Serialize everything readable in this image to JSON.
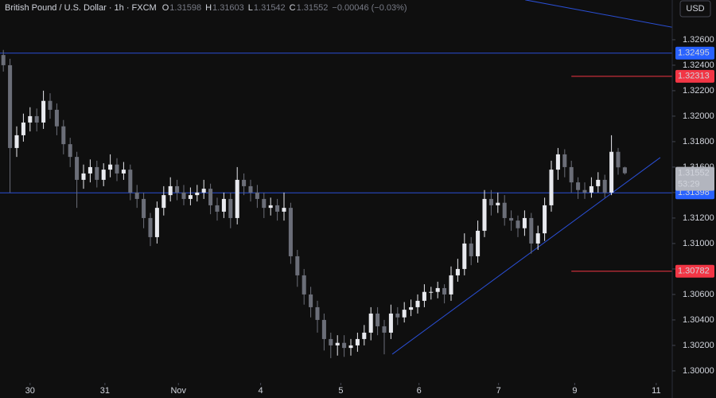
{
  "chart_data": {
    "type": "candlestick",
    "symbol_title": "British Pound / U.S. Dollar · 1h · FXCM",
    "ohlc_letters": [
      "O",
      "H",
      "L",
      "C"
    ],
    "change_label": "−0.00046 (−0.03%)",
    "currency_button": "USD",
    "countdown": "53:29",
    "up_color": "#e8e9ee",
    "down_color": "#6b6e78",
    "xlim": [
      -0.5,
      99.5
    ],
    "ylim": [
      1.29912,
      1.32912
    ],
    "xticks": [
      {
        "value": 4.0,
        "label": "30"
      },
      {
        "value": 15.2,
        "label": "31"
      },
      {
        "value": 26.2,
        "label": "Nov"
      },
      {
        "value": 38.5,
        "label": "4"
      },
      {
        "value": 50.5,
        "label": "5"
      },
      {
        "value": 62.2,
        "label": "6"
      },
      {
        "value": 74.1,
        "label": "7"
      },
      {
        "value": 85.5,
        "label": "9"
      },
      {
        "value": 97.7,
        "label": "11"
      }
    ],
    "yticks": [
      {
        "value": 1.3,
        "label": "1.30000"
      },
      {
        "value": 1.302,
        "label": "1.30200"
      },
      {
        "value": 1.304,
        "label": "1.30400"
      },
      {
        "value": 1.306,
        "label": "1.30600"
      },
      {
        "value": 1.308,
        "label": "1.30800"
      },
      {
        "value": 1.31,
        "label": "1.31000"
      },
      {
        "value": 1.312,
        "label": "1.31200"
      },
      {
        "value": 1.314,
        "label": "1.31400"
      },
      {
        "value": 1.316,
        "label": "1.31600"
      },
      {
        "value": 1.318,
        "label": "1.31800"
      },
      {
        "value": 1.32,
        "label": "1.32000"
      },
      {
        "value": 1.322,
        "label": "1.32200"
      },
      {
        "value": 1.324,
        "label": "1.32400"
      },
      {
        "value": 1.326,
        "label": "1.32600"
      }
    ],
    "series": [
      {
        "x": [
          0,
          1,
          2,
          3,
          4,
          5,
          6,
          7,
          8,
          9,
          10,
          11,
          12,
          13,
          14,
          15,
          16,
          17,
          18,
          19,
          20,
          21,
          22,
          23,
          24,
          25,
          26,
          27,
          28,
          29,
          30,
          31,
          32,
          33,
          34,
          35,
          36,
          37,
          38,
          39,
          40,
          41,
          42,
          43,
          44,
          45,
          46,
          47,
          48,
          49,
          50,
          51,
          52,
          53,
          54,
          55,
          56,
          57,
          58,
          59,
          60,
          61,
          62,
          63,
          64,
          65,
          66,
          67,
          68,
          69,
          70,
          71,
          72,
          73,
          74,
          75,
          76,
          77,
          78,
          79,
          80,
          81,
          82,
          83,
          84,
          85,
          86,
          87,
          88,
          89,
          90,
          91,
          92,
          93
        ],
        "open": [
          1.3248,
          1.324,
          1.3175,
          1.3185,
          1.3195,
          1.32,
          1.3195,
          1.3212,
          1.3205,
          1.3192,
          1.3178,
          1.3168,
          1.315,
          1.3155,
          1.316,
          1.315,
          1.3158,
          1.3162,
          1.3155,
          1.3158,
          1.314,
          1.3135,
          1.312,
          1.3105,
          1.3128,
          1.3138,
          1.3145,
          1.314,
          1.3135,
          1.3138,
          1.314,
          1.3143,
          1.313,
          1.3125,
          1.3135,
          1.312,
          1.315,
          1.3145,
          1.314,
          1.3135,
          1.3128,
          1.313,
          1.3125,
          1.3128,
          1.309,
          1.3075,
          1.306,
          1.305,
          1.304,
          1.3025,
          1.302,
          1.3022,
          1.3018,
          1.302,
          1.3025,
          1.303,
          1.3045,
          1.3035,
          1.303,
          1.3045,
          1.3042,
          1.3048,
          1.305,
          1.3055,
          1.3062,
          1.3062,
          1.3065,
          1.306,
          1.3075,
          1.308,
          1.31,
          1.309,
          1.311,
          1.3135,
          1.313,
          1.3132,
          1.312,
          1.3118,
          1.3112,
          1.312,
          1.31,
          1.3108,
          1.313,
          1.3158,
          1.317,
          1.316,
          1.3148,
          1.3142,
          1.314,
          1.3145,
          1.315,
          1.314,
          1.3172,
          1.31598
        ],
        "high": [
          1.3252,
          1.3245,
          1.3192,
          1.3202,
          1.3207,
          1.3206,
          1.322,
          1.3218,
          1.321,
          1.3197,
          1.3183,
          1.3172,
          1.3162,
          1.3166,
          1.3165,
          1.3163,
          1.317,
          1.3167,
          1.3164,
          1.3162,
          1.3146,
          1.314,
          1.3124,
          1.3133,
          1.3145,
          1.3152,
          1.315,
          1.3146,
          1.3144,
          1.3146,
          1.315,
          1.3147,
          1.3136,
          1.314,
          1.314,
          1.316,
          1.3155,
          1.315,
          1.3146,
          1.314,
          1.3136,
          1.3135,
          1.314,
          1.3132,
          1.3095,
          1.308,
          1.3066,
          1.3055,
          1.3045,
          1.303,
          1.3028,
          1.3028,
          1.3025,
          1.303,
          1.3036,
          1.305,
          1.305,
          1.304,
          1.3052,
          1.305,
          1.3054,
          1.3056,
          1.306,
          1.3068,
          1.3066,
          1.307,
          1.3068,
          1.3082,
          1.3088,
          1.3108,
          1.3105,
          1.3118,
          1.3142,
          1.3142,
          1.314,
          1.3138,
          1.3126,
          1.3122,
          1.3126,
          1.3124,
          1.3114,
          1.3136,
          1.3165,
          1.3175,
          1.3174,
          1.3165,
          1.3152,
          1.3148,
          1.3152,
          1.3156,
          1.3154,
          1.3185,
          1.3175,
          1.31603
        ],
        "low": [
          1.3235,
          1.314,
          1.3168,
          1.318,
          1.3188,
          1.3188,
          1.319,
          1.3198,
          1.3185,
          1.317,
          1.316,
          1.3128,
          1.3143,
          1.3148,
          1.3144,
          1.3145,
          1.3152,
          1.3149,
          1.315,
          1.3134,
          1.3128,
          1.3112,
          1.3098,
          1.31,
          1.3122,
          1.3133,
          1.3134,
          1.313,
          1.313,
          1.3133,
          1.3135,
          1.3123,
          1.3118,
          1.312,
          1.3112,
          1.3115,
          1.3138,
          1.3133,
          1.3128,
          1.312,
          1.3122,
          1.3118,
          1.3118,
          1.3084,
          1.3066,
          1.3052,
          1.3042,
          1.303,
          1.3016,
          1.301,
          1.3012,
          1.3011,
          1.3012,
          1.3015,
          1.302,
          1.3024,
          1.3028,
          1.3013,
          1.3025,
          1.3036,
          1.3038,
          1.3043,
          1.3045,
          1.305,
          1.3056,
          1.3057,
          1.3053,
          1.3055,
          1.307,
          1.3075,
          1.3083,
          1.3085,
          1.3105,
          1.3122,
          1.3124,
          1.3114,
          1.311,
          1.3105,
          1.3106,
          1.3092,
          1.3095,
          1.3102,
          1.3125,
          1.315,
          1.3152,
          1.314,
          1.3135,
          1.3135,
          1.3136,
          1.314,
          1.3136,
          1.3138,
          1.3154,
          1.31542
        ],
        "close": [
          1.324,
          1.3175,
          1.3185,
          1.3195,
          1.32,
          1.3195,
          1.3212,
          1.3205,
          1.3192,
          1.3178,
          1.3168,
          1.315,
          1.3155,
          1.316,
          1.315,
          1.3158,
          1.3162,
          1.3155,
          1.3158,
          1.314,
          1.3135,
          1.312,
          1.3105,
          1.3128,
          1.3138,
          1.3145,
          1.314,
          1.3135,
          1.3138,
          1.314,
          1.3143,
          1.313,
          1.3125,
          1.3135,
          1.312,
          1.315,
          1.3145,
          1.314,
          1.3135,
          1.3128,
          1.313,
          1.3125,
          1.3128,
          1.309,
          1.3075,
          1.306,
          1.305,
          1.304,
          1.3025,
          1.302,
          1.3022,
          1.3018,
          1.302,
          1.3025,
          1.303,
          1.3045,
          1.3035,
          1.303,
          1.3045,
          1.3042,
          1.3048,
          1.305,
          1.3055,
          1.3062,
          1.3062,
          1.3065,
          1.306,
          1.3075,
          1.308,
          1.31,
          1.309,
          1.311,
          1.3135,
          1.313,
          1.3132,
          1.312,
          1.3118,
          1.3112,
          1.312,
          1.31,
          1.3108,
          1.313,
          1.3158,
          1.317,
          1.316,
          1.3148,
          1.3142,
          1.314,
          1.3145,
          1.315,
          1.314,
          1.3172,
          1.31598,
          1.31552
        ]
      }
    ],
    "hlines": [
      {
        "value": 1.32495,
        "color": "#2a4fd6",
        "x_start": null
      },
      {
        "value": 1.31398,
        "color": "#2a4fd6",
        "x_start": null
      },
      {
        "value": 1.32313,
        "color": "#f23645",
        "x_start": 85
      },
      {
        "value": 1.30782,
        "color": "#f23645",
        "x_start": 85
      }
    ],
    "trendlines": [
      {
        "x": [
          78.1,
          100.5
        ],
        "y": [
          1.32913,
          1.32694
        ],
        "color": "#2a4fd6"
      },
      {
        "x": [
          58.2,
          98.3
        ],
        "y": [
          1.30131,
          1.31675
        ],
        "color": "#2a4fd6"
      }
    ]
  }
}
